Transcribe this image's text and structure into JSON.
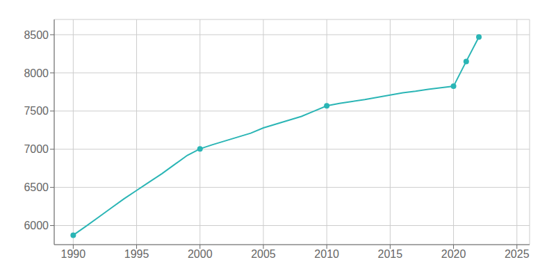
{
  "chart_data": {
    "type": "line",
    "x": [
      1990,
      1991,
      1992,
      1993,
      1994,
      1995,
      1996,
      1997,
      1998,
      1999,
      2000,
      2001,
      2002,
      2003,
      2004,
      2005,
      2006,
      2007,
      2008,
      2009,
      2010,
      2011,
      2012,
      2013,
      2014,
      2015,
      2016,
      2017,
      2018,
      2019,
      2020,
      2021,
      2022
    ],
    "series": [
      {
        "type": "line",
        "color": "#2ab5b5",
        "values": [
          5874,
          5990,
          6110,
          6230,
          6350,
          6460,
          6570,
          6680,
          6800,
          6920,
          7005,
          7060,
          7110,
          7160,
          7210,
          7280,
          7330,
          7380,
          7430,
          7500,
          7568,
          7600,
          7625,
          7650,
          7680,
          7710,
          7740,
          7760,
          7785,
          7805,
          7825,
          8150,
          8470
        ]
      },
      {
        "type": "scatter",
        "color": "#2ab5b5",
        "marker": "o",
        "values": [
          5874,
          null,
          null,
          null,
          null,
          null,
          null,
          null,
          null,
          null,
          7005,
          null,
          null,
          null,
          null,
          null,
          null,
          null,
          null,
          null,
          7568,
          null,
          null,
          null,
          null,
          null,
          null,
          null,
          null,
          null,
          7825,
          8150,
          8470
        ]
      }
    ],
    "xlim": [
      1988.5,
      2026
    ],
    "ylim": [
      5750,
      8700
    ],
    "xticks": [
      1990,
      1995,
      2000,
      2005,
      2010,
      2015,
      2020,
      2025
    ],
    "yticks": [
      6000,
      6500,
      7000,
      7500,
      8000,
      8500
    ],
    "grid": true
  }
}
